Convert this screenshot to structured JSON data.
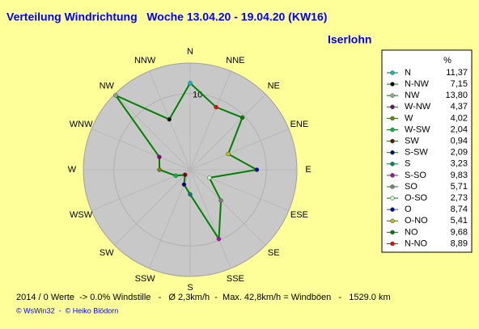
{
  "chart_data": {
    "type": "windrose",
    "title": "Verteilung Windrichtung   Woche 13.04.20 - 19.04.20 (KW16)",
    "location": "Iserlohn",
    "legend_header": "%",
    "direction_labels": [
      "N",
      "NNE",
      "NE",
      "ENE",
      "E",
      "ESE",
      "SE",
      "SSE",
      "S",
      "SSW",
      "SW",
      "WSW",
      "W",
      "WNW",
      "NW",
      "NNW"
    ],
    "categories": [
      "N",
      "N-NW",
      "NW",
      "W-NW",
      "W",
      "W-SW",
      "SW",
      "S-SW",
      "S",
      "S-SO",
      "SO",
      "O-SO",
      "O",
      "O-NO",
      "NO",
      "N-NO"
    ],
    "values": [
      11.37,
      7.15,
      13.8,
      4.37,
      4.02,
      2.04,
      0.94,
      2.09,
      3.23,
      9.83,
      5.71,
      2.73,
      8.74,
      5.41,
      9.68,
      8.89
    ],
    "value_labels": [
      "11,37",
      "7,15",
      "13,80",
      "4,37",
      "4,02",
      "2,04",
      "0,94",
      "2,09",
      "3,23",
      "9,83",
      "5,71",
      "2,73",
      "8,74",
      "5,41",
      "9,68",
      "8,89"
    ],
    "colors": [
      "#00c0c0",
      "#000000",
      "#a0a0a0",
      "#800080",
      "#808000",
      "#00c040",
      "#800000",
      "#000080",
      "#008080",
      "#c000c0",
      "#808080",
      "#c0ffc0",
      "#0000c0",
      "#c0c000",
      "#008000",
      "#ff0000"
    ],
    "line_color": "#008000",
    "rlim": [
      0,
      14
    ],
    "rticks": [
      10
    ],
    "footer": "2014 / 0 Werte  -> 0.0% Windstille   -   Ø 2,3km/h  -  Max. 42,8km/h = Windböen   -   1529.0 km",
    "credit": "© WsWin32  -  © Heiko Blödorn"
  }
}
